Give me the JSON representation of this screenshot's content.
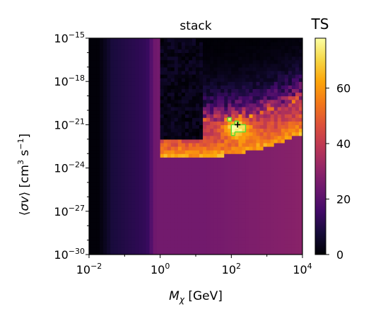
{
  "chart_data": {
    "type": "heatmap",
    "title": "stack",
    "xlabel": "Mχ [GeV]",
    "ylabel": "⟨σv⟩ [cm³ s⁻¹]",
    "x_scale": "log",
    "y_scale": "log",
    "xlim": [
      0.01,
      10000
    ],
    "ylim": [
      1e-30,
      1e-15
    ],
    "x_ticks": [
      {
        "value": 0.01,
        "base": "10",
        "exp": "−2"
      },
      {
        "value": 1,
        "base": "10",
        "exp": "0"
      },
      {
        "value": 100,
        "base": "10",
        "exp": "2"
      },
      {
        "value": 10000,
        "base": "10",
        "exp": "4"
      }
    ],
    "y_ticks": [
      {
        "value": 1e-30,
        "base": "10",
        "exp": "−30"
      },
      {
        "value": 1e-27,
        "base": "10",
        "exp": "−27"
      },
      {
        "value": 1e-24,
        "base": "10",
        "exp": "−24"
      },
      {
        "value": 1e-21,
        "base": "10",
        "exp": "−21"
      },
      {
        "value": 1e-18,
        "base": "10",
        "exp": "−18"
      },
      {
        "value": 1e-15,
        "base": "10",
        "exp": "−15"
      }
    ],
    "colorbar": {
      "label": "TS",
      "colormap": "inferno",
      "min": 0,
      "max": 78,
      "ticks": [
        "0",
        "20",
        "40",
        "60"
      ]
    },
    "best_fit": {
      "mass": 150,
      "sigma_v": 1e-21
    },
    "contour_color": "#55dd33",
    "contour_ts": 70
  }
}
